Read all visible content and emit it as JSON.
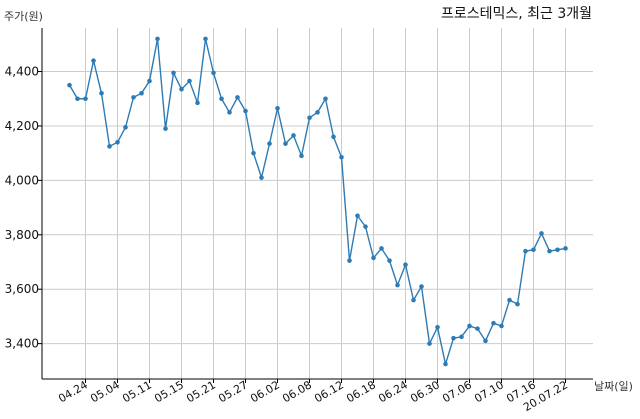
{
  "chart_data": {
    "type": "line",
    "title": "프로스테믹스, 최근 3개월",
    "ylabel": "주가(원)",
    "xlabel": "날짜(일)",
    "ylim": [
      3270,
      4560
    ],
    "yticks": [
      3400,
      3600,
      3800,
      4000,
      4200,
      4400
    ],
    "ytick_labels": [
      "3,400",
      "3,600",
      "3,800",
      "4,000",
      "4,200",
      "4,400"
    ],
    "xtick_labels": [
      "04.24",
      "05.04",
      "05.11",
      "05.15",
      "05.21",
      "05.27",
      "06.02",
      "06.08",
      "06.12",
      "06.18",
      "06.24",
      "06.30",
      "07.06",
      "07.10",
      "07.16",
      "20.07.22"
    ],
    "xtick_indices": [
      2,
      6,
      10,
      14,
      18,
      22,
      26,
      30,
      34,
      38,
      42,
      46,
      50,
      54,
      58,
      62
    ],
    "grid": true,
    "colors": {
      "line": "#2e7bb4",
      "grid": "#cccccc",
      "axis": "#000000"
    },
    "series": [
      {
        "values": [
          4350,
          4300,
          4300,
          4440,
          4320,
          4125,
          4140,
          4195,
          4305,
          4320,
          4365,
          4520,
          4190,
          4395,
          4335,
          4365,
          4285,
          4520,
          4395,
          4300,
          4250,
          4305,
          4255,
          4100,
          4010,
          4135,
          4265,
          4135,
          4165,
          4090,
          4230,
          4250,
          4300,
          4160,
          4085,
          3705,
          3870,
          3830,
          3715,
          3750,
          3705,
          3615,
          3690,
          3560,
          3610,
          3400,
          3460,
          3325,
          3420,
          3425,
          3465,
          3455,
          3410,
          3475,
          3465,
          3560,
          3545,
          3740,
          3745,
          3805,
          3740,
          3745,
          3750
        ]
      }
    ]
  }
}
